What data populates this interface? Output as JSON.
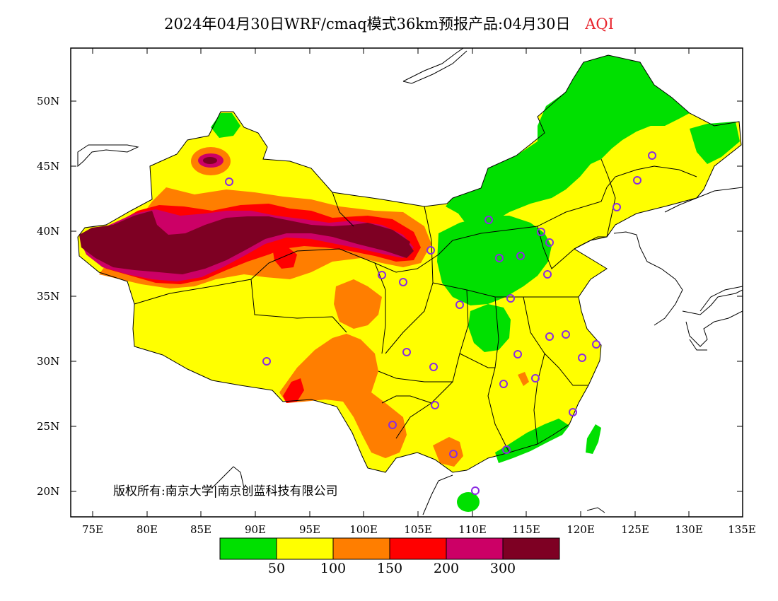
{
  "title": {
    "main": "2024年04月30日WRF/cmaq模式36km预报产品:04月30日",
    "variable": "AQI"
  },
  "lat_labels": [
    "50N",
    "45N",
    "40N",
    "35N",
    "30N",
    "25N",
    "20N"
  ],
  "lon_labels": [
    "75E",
    "80E",
    "85E",
    "90E",
    "95E",
    "100E",
    "105E",
    "110E",
    "115E",
    "120E",
    "125E",
    "130E",
    "135E"
  ],
  "copyright": "版权所有:南京大学|南京创蓝科技有限公司",
  "legend": {
    "colors": [
      "#00e000",
      "#ffff00",
      "#ff7e00",
      "#ff0000",
      "#cc0066",
      "#7e0023"
    ],
    "labels": [
      "50",
      "100",
      "150",
      "200",
      "300"
    ]
  },
  "colors": {
    "good": "#00e000",
    "moderate": "#ffff00",
    "sensitive": "#ff7e00",
    "unhealthy": "#ff0000",
    "very_unhealthy": "#cc0066",
    "hazardous": "#7e0023",
    "city_marker": "#8a2be2"
  }
}
